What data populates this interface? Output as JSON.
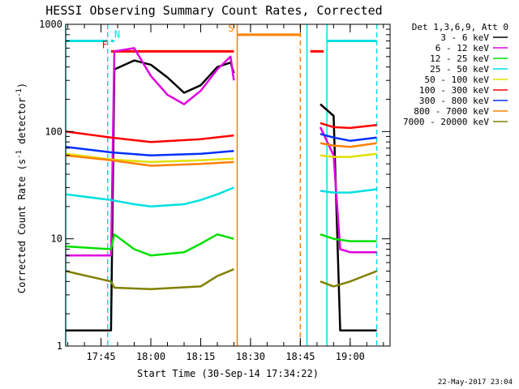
{
  "chart_data": {
    "type": "line",
    "title": "HESSI Observing Summary Count Rates, Corrected",
    "xlabel": "Start Time (30-Sep-14 17:34:22)",
    "ylabel": "Corrected Count Rate (s⁻¹ detector⁻¹)",
    "ylabel_main": "Corrected Count Rate (s",
    "ylabel_sup1": "-1",
    "ylabel_mid": " detector",
    "ylabel_sup2": "-1",
    "ylabel_end": ")",
    "y_scale": "log",
    "ylim": [
      1,
      1000
    ],
    "xlim": [
      "17:34:22",
      "19:12:00"
    ],
    "x_ticks": [
      "17:45",
      "18:00",
      "18:15",
      "18:30",
      "18:45",
      "19:00"
    ],
    "y_ticks": [
      {
        "value": 1,
        "label": "1"
      },
      {
        "value": 10,
        "label": "10"
      },
      {
        "value": 100,
        "label": "100"
      },
      {
        "value": 1000,
        "label": "1000"
      }
    ],
    "legend_title": "Det 1,3,6,9, Att 0",
    "legend_position": "right",
    "timestamp": "22-May-2017 23:04",
    "series": [
      {
        "name": "3 - 6 keV",
        "color": "#000000",
        "points": [
          [
            "17:34:22",
            1.4
          ],
          [
            "17:41",
            1.4
          ],
          [
            "17:48",
            1.4
          ],
          [
            "17:49",
            380
          ],
          [
            "17:55",
            460
          ],
          [
            "18:00",
            420
          ],
          [
            "18:05",
            320
          ],
          [
            "18:10",
            230
          ],
          [
            "18:15",
            270
          ],
          [
            "18:20",
            400
          ],
          [
            "18:24",
            440
          ],
          [
            "18:25",
            350
          ],
          [
            "18:51",
            180
          ],
          [
            "18:55",
            140
          ],
          [
            "18:57",
            1.4
          ],
          [
            "19:08",
            1.4
          ]
        ]
      },
      {
        "name": "6 - 12 keV",
        "color": "#e000e0",
        "points": [
          [
            "17:34:22",
            7
          ],
          [
            "17:48",
            7
          ],
          [
            "17:49",
            560
          ],
          [
            "17:55",
            600
          ],
          [
            "18:00",
            330
          ],
          [
            "18:05",
            220
          ],
          [
            "18:10",
            180
          ],
          [
            "18:15",
            240
          ],
          [
            "18:20",
            380
          ],
          [
            "18:24",
            500
          ],
          [
            "18:25",
            300
          ],
          [
            "18:51",
            110
          ],
          [
            "18:55",
            60
          ],
          [
            "18:57",
            8
          ],
          [
            "19:00",
            7.5
          ],
          [
            "19:08",
            7.5
          ]
        ]
      },
      {
        "name": "12 - 25 keV",
        "color": "#00e000",
        "points": [
          [
            "17:34:22",
            8.5
          ],
          [
            "17:48",
            8
          ],
          [
            "17:49",
            11
          ],
          [
            "17:55",
            8
          ],
          [
            "18:00",
            7
          ],
          [
            "18:10",
            7.5
          ],
          [
            "18:15",
            9
          ],
          [
            "18:20",
            11
          ],
          [
            "18:25",
            10
          ],
          [
            "18:51",
            11
          ],
          [
            "18:55",
            10
          ],
          [
            "19:00",
            9.5
          ],
          [
            "19:08",
            9.5
          ]
        ]
      },
      {
        "name": "25 - 50 keV",
        "color": "#00e0e0",
        "points": [
          [
            "17:34:22",
            26
          ],
          [
            "17:48",
            23
          ],
          [
            "17:55",
            21
          ],
          [
            "18:00",
            20
          ],
          [
            "18:10",
            21
          ],
          [
            "18:15",
            23
          ],
          [
            "18:20",
            26
          ],
          [
            "18:25",
            30
          ],
          [
            "18:51",
            28
          ],
          [
            "18:55",
            27
          ],
          [
            "19:00",
            27
          ],
          [
            "19:08",
            29
          ]
        ]
      },
      {
        "name": "50 - 100 keV",
        "color": "#e0e000",
        "points": [
          [
            "17:34:22",
            62
          ],
          [
            "17:48",
            55
          ],
          [
            "18:00",
            52
          ],
          [
            "18:15",
            54
          ],
          [
            "18:25",
            56
          ],
          [
            "18:51",
            60
          ],
          [
            "18:55",
            58
          ],
          [
            "19:00",
            58
          ],
          [
            "19:08",
            62
          ]
        ]
      },
      {
        "name": "100 - 300 keV",
        "color": "#ff0000",
        "points": [
          [
            "17:34:22",
            100
          ],
          [
            "17:48",
            88
          ],
          [
            "18:00",
            80
          ],
          [
            "18:15",
            85
          ],
          [
            "18:25",
            92
          ],
          [
            "18:51",
            120
          ],
          [
            "18:55",
            110
          ],
          [
            "19:00",
            108
          ],
          [
            "19:08",
            115
          ]
        ]
      },
      {
        "name": "300 - 800 keV",
        "color": "#0030ff",
        "points": [
          [
            "17:34:22",
            72
          ],
          [
            "17:48",
            64
          ],
          [
            "18:00",
            60
          ],
          [
            "18:15",
            62
          ],
          [
            "18:25",
            66
          ],
          [
            "18:51",
            95
          ],
          [
            "18:55",
            88
          ],
          [
            "19:00",
            82
          ],
          [
            "19:08",
            88
          ]
        ]
      },
      {
        "name": "800 - 7000 keV",
        "color": "#ff8000",
        "points": [
          [
            "17:34:22",
            60
          ],
          [
            "17:48",
            54
          ],
          [
            "18:00",
            48
          ],
          [
            "18:15",
            50
          ],
          [
            "18:25",
            52
          ],
          [
            "18:51",
            78
          ],
          [
            "18:55",
            74
          ],
          [
            "19:00",
            72
          ],
          [
            "19:08",
            78
          ]
        ]
      },
      {
        "name": "7000 - 20000 keV",
        "color": "#808000",
        "points": [
          [
            "17:34:22",
            5
          ],
          [
            "17:48",
            4
          ],
          [
            "17:49",
            3.5
          ],
          [
            "18:00",
            3.4
          ],
          [
            "18:15",
            3.6
          ],
          [
            "18:20",
            4.5
          ],
          [
            "18:25",
            5.2
          ],
          [
            "18:51",
            4
          ],
          [
            "18:55",
            3.6
          ],
          [
            "19:00",
            4
          ],
          [
            "19:08",
            5
          ]
        ]
      }
    ],
    "state_bars": [
      {
        "label": "",
        "color": "#00e0e0",
        "start": "17:34:22",
        "end": "17:47",
        "level": 700
      },
      {
        "label": "F",
        "color": "#ff0000",
        "start": "17:48",
        "end": "18:25",
        "level": 560
      },
      {
        "label": "N",
        "color": "#00e0e0",
        "start": "17:48",
        "end": "17:49",
        "level": 700
      },
      {
        "label": "S",
        "color": "#ff8000",
        "start": "18:26",
        "end": "18:45",
        "level": 800
      },
      {
        "label": "",
        "color": "#ff0000",
        "start": "18:48",
        "end": "18:52",
        "level": 560
      },
      {
        "label": "",
        "color": "#00e0e0",
        "start": "18:53",
        "end": "19:08",
        "level": 700
      }
    ],
    "vertical_markers": [
      {
        "time": "17:34:22",
        "color": "#00e0e0",
        "style": "solid"
      },
      {
        "time": "17:47",
        "color": "#00e0e0",
        "style": "dashed"
      },
      {
        "time": "18:26",
        "color": "#ff8000",
        "style": "solid"
      },
      {
        "time": "18:45",
        "color": "#ff8000",
        "style": "dashed"
      },
      {
        "time": "18:47",
        "color": "#00e0e0",
        "style": "solid"
      },
      {
        "time": "18:53",
        "color": "#00e0e0",
        "style": "solid"
      },
      {
        "time": "19:08",
        "color": "#00e0e0",
        "style": "dashed"
      }
    ]
  }
}
